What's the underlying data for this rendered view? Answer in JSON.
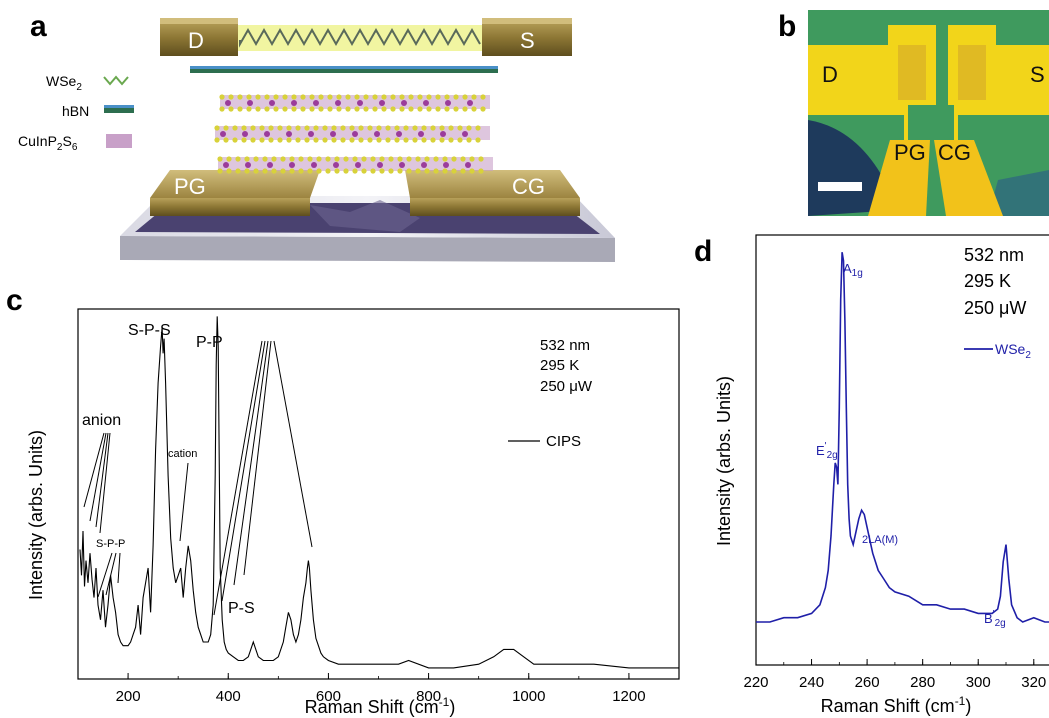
{
  "panels": {
    "a": {
      "letter": "a",
      "electrodes": {
        "drain": "D",
        "source": "S",
        "pg": "PG",
        "cg": "CG"
      },
      "legend": [
        {
          "label_main": "WSe",
          "label_sub": "2",
          "label_tail": ""
        },
        {
          "label_main": "hBN",
          "label_sub": "",
          "label_tail": ""
        },
        {
          "label_main": "CuInP",
          "label_sub": "2",
          "label_tail": "S",
          "label_sub2": "6"
        }
      ]
    },
    "b": {
      "letter": "b",
      "labels": {
        "drain": "D",
        "source": "S",
        "pg": "PG",
        "cg": "CG"
      }
    },
    "c": {
      "letter": "c"
    },
    "d": {
      "letter": "d"
    }
  },
  "chart_data": [
    {
      "id": "c",
      "type": "line",
      "xlabel": "Raman Shift (cm",
      "xlabel_sup": "-1",
      "xlabel_tail": ")",
      "ylabel": "Intensity (arbs. Units)",
      "xlim": [
        100,
        1300
      ],
      "xticks": [
        200,
        400,
        600,
        800,
        1000,
        1200
      ],
      "ylim": [
        0,
        100
      ],
      "info": [
        "532 nm",
        "295 K",
        "250 μW"
      ],
      "legend": {
        "label": "CIPS",
        "color": "#000000",
        "position": "right"
      },
      "annotations": [
        "anion",
        "S-P-P",
        "S-P-S",
        "P-P",
        "cation",
        "P-S"
      ],
      "series": [
        {
          "name": "CIPS",
          "color": "#000000",
          "x": [
            104,
            107,
            110,
            113,
            116,
            120,
            124,
            128,
            132,
            136,
            140,
            145,
            150,
            155,
            160,
            165,
            170,
            175,
            180,
            185,
            190,
            195,
            200,
            205,
            210,
            215,
            220,
            225,
            230,
            235,
            240,
            245,
            250,
            255,
            260,
            265,
            268,
            270,
            272,
            275,
            280,
            285,
            290,
            295,
            300,
            305,
            310,
            315,
            320,
            325,
            330,
            335,
            340,
            345,
            350,
            355,
            360,
            365,
            370,
            374,
            376,
            378,
            380,
            382,
            384,
            388,
            392,
            396,
            400,
            410,
            420,
            430,
            440,
            445,
            450,
            455,
            460,
            470,
            480,
            490,
            500,
            510,
            515,
            520,
            525,
            530,
            535,
            540,
            545,
            550,
            555,
            558,
            560,
            562,
            565,
            570,
            575,
            580,
            585,
            590,
            600,
            620,
            650,
            700,
            740,
            760,
            800,
            850,
            900,
            930,
            950,
            970,
            990,
            1010,
            1050,
            1100,
            1115,
            1130,
            1200,
            1250,
            1300
          ],
          "y": [
            35,
            28,
            40,
            25,
            32,
            26,
            34,
            27,
            22,
            30,
            20,
            16,
            24,
            14,
            20,
            28,
            22,
            18,
            12,
            10,
            9,
            9,
            9,
            10,
            12,
            14,
            20,
            12,
            22,
            26,
            30,
            18,
            36,
            62,
            80,
            90,
            95,
            88,
            92,
            80,
            55,
            38,
            30,
            26,
            28,
            30,
            22,
            30,
            36,
            32,
            24,
            18,
            14,
            12,
            10,
            10,
            10,
            12,
            20,
            55,
            85,
            98,
            90,
            60,
            30,
            16,
            10,
            8,
            7,
            6,
            5,
            5,
            6,
            8,
            10,
            8,
            6,
            5,
            5,
            5,
            6,
            10,
            14,
            18,
            16,
            12,
            10,
            12,
            16,
            22,
            26,
            30,
            32,
            30,
            24,
            16,
            11,
            9,
            7,
            6,
            5,
            4,
            4,
            4,
            4,
            5,
            3,
            3,
            4,
            6,
            8,
            8,
            6,
            4,
            4,
            4,
            4,
            4,
            3,
            3,
            3
          ]
        }
      ]
    },
    {
      "id": "d",
      "type": "line",
      "xlabel": "Raman Shift (cm",
      "xlabel_sup": "-1",
      "xlabel_tail": ")",
      "ylabel": "Intensity (arbs. Units)",
      "xlim": [
        220,
        328
      ],
      "xticks": [
        220,
        240,
        260,
        280,
        300,
        320
      ],
      "ylim": [
        0,
        100
      ],
      "info": [
        "532 nm",
        "295 K",
        "250 μW"
      ],
      "legend": {
        "label": "WSe",
        "label_sub": "2",
        "color": "#1f1fa8",
        "position": "top-right"
      },
      "peak_labels": [
        {
          "text": "A",
          "sub": "1g"
        },
        {
          "text": "E",
          "sup": "'",
          "sub": "2g"
        },
        {
          "text": "2LA(M)"
        },
        {
          "text": "B",
          "sup": "'",
          "sub": "2g"
        }
      ],
      "series": [
        {
          "name": "WSe2",
          "color": "#1f1fa8",
          "x": [
            220,
            225,
            230,
            235,
            240,
            243,
            245,
            246,
            247,
            248,
            248.5,
            249,
            249.5,
            250,
            250.5,
            251,
            251.5,
            252,
            252.5,
            253,
            253.5,
            254,
            255,
            256,
            257,
            258,
            259,
            260,
            262,
            264,
            266,
            268,
            270,
            275,
            280,
            285,
            290,
            295,
            300,
            305,
            307,
            308,
            309,
            310,
            311,
            312,
            314,
            316,
            320,
            324,
            328
          ],
          "y": [
            10,
            10,
            11,
            11,
            12,
            14,
            18,
            22,
            30,
            42,
            47,
            46,
            42,
            60,
            85,
            96,
            94,
            80,
            60,
            42,
            34,
            30,
            28,
            31,
            34,
            36,
            35,
            32,
            26,
            22,
            20,
            18,
            17,
            16,
            14,
            14,
            13,
            13,
            12,
            12,
            13,
            16,
            24,
            28,
            20,
            14,
            11,
            10,
            11,
            10,
            10
          ]
        }
      ]
    }
  ]
}
